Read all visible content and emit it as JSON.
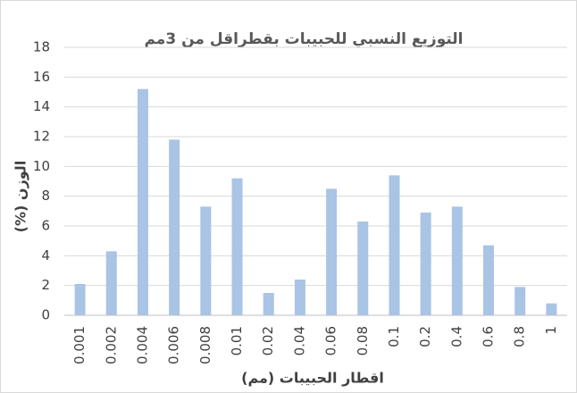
{
  "chart_data": {
    "type": "bar",
    "title": "التوزيع النسبي للحبيبات بقطراقل من 3مم",
    "x_label": "اقطار الحبيبات (مم)",
    "y_label": "الوزن (%)",
    "categories": [
      "0.001",
      "0.002",
      "0.004",
      "0.006",
      "0.008",
      "0.01",
      "0.02",
      "0.04",
      "0.06",
      "0.08",
      "0.1",
      "0.2",
      "0.4",
      "0.6",
      "0.8",
      "1"
    ],
    "values": [
      2.1,
      4.3,
      15.2,
      11.8,
      7.3,
      9.2,
      1.5,
      2.4,
      8.5,
      6.3,
      9.4,
      6.9,
      7.3,
      4.7,
      1.9,
      0.8
    ],
    "color": "#a9c4e4",
    "ylim": [
      0,
      18
    ],
    "yticks": [
      0,
      2,
      4,
      6,
      8,
      10,
      12,
      14,
      16,
      18
    ],
    "grid": true
  }
}
